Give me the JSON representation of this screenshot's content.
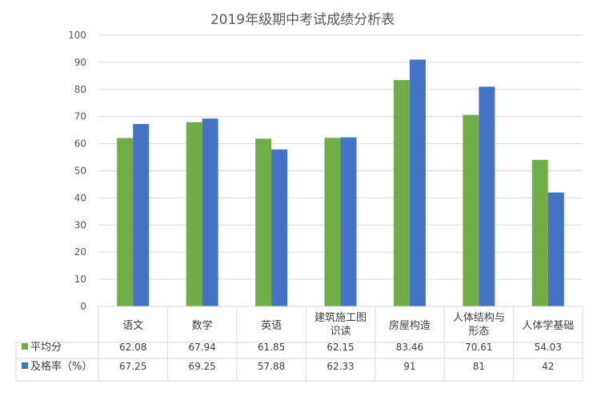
{
  "chart_data": {
    "type": "bar",
    "title": "2019年级期中考试成绩分析表",
    "categories": [
      "语文",
      "数学",
      "英语",
      [
        "建筑施工图",
        "识读"
      ],
      "房屋构造",
      [
        "人体结构与",
        "形态"
      ],
      "人体学基础"
    ],
    "series": [
      {
        "name": "平均分",
        "color": "#70AD47",
        "values": [
          62.08,
          67.94,
          61.85,
          62.15,
          83.46,
          70.61,
          54.03
        ],
        "labels": [
          "62.08",
          "67.94",
          "61.85",
          "62.15",
          "83.46",
          "70.61",
          "54.03"
        ]
      },
      {
        "name": "及格率（%）",
        "color": "#4472C4",
        "values": [
          67.25,
          69.25,
          57.88,
          62.33,
          91,
          81,
          42
        ],
        "labels": [
          "67.25",
          "69.25",
          "57.88",
          "62.33",
          "91",
          "81",
          "42"
        ]
      }
    ],
    "ylim": [
      0,
      100
    ],
    "yticks": [
      "0",
      "10",
      "20",
      "30",
      "40",
      "50",
      "60",
      "70",
      "80",
      "90",
      "100"
    ],
    "grid": true,
    "legend": "data-table"
  }
}
